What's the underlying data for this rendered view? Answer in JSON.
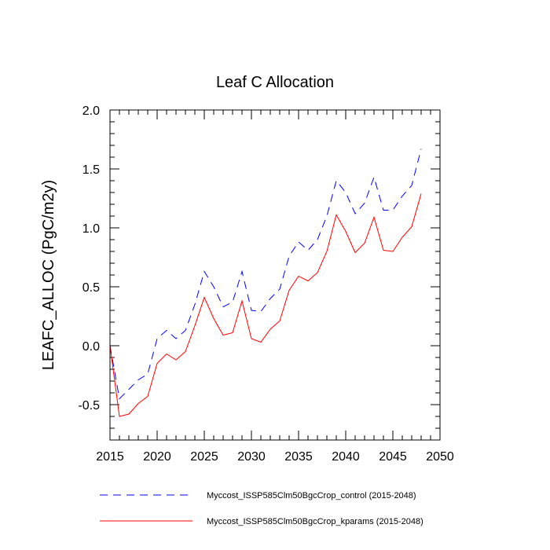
{
  "chart_data": {
    "type": "line",
    "title": "Leaf C Allocation",
    "xlabel": "",
    "ylabel": "LEAFC_ALLOC  (PgC/m2y)",
    "xlim": [
      2015,
      2050
    ],
    "ylim": [
      -0.8,
      2.0
    ],
    "x_major_ticks": [
      2015,
      2020,
      2025,
      2030,
      2035,
      2040,
      2045,
      2050
    ],
    "x_tick_labels": [
      "2015",
      "2020",
      "2025",
      "2030",
      "2035",
      "2040",
      "2045",
      "2050"
    ],
    "y_major_ticks": [
      -0.5,
      0.0,
      0.5,
      1.0,
      1.5,
      2.0
    ],
    "y_tick_labels": [
      "-0.5",
      "0.0",
      "0.5",
      "1.0",
      "1.5",
      "2.0"
    ],
    "x_minor_step": 1,
    "y_minor_step": 0.1,
    "grid": false,
    "legend_position": "bottom",
    "x": [
      2015,
      2016,
      2017,
      2018,
      2019,
      2020,
      2021,
      2022,
      2023,
      2024,
      2025,
      2026,
      2027,
      2028,
      2029,
      2030,
      2031,
      2032,
      2033,
      2034,
      2035,
      2036,
      2037,
      2038,
      2039,
      2040,
      2041,
      2042,
      2043,
      2044,
      2045,
      2046,
      2047,
      2048
    ],
    "series": [
      {
        "name": "Myccost_ISSP585Clm50BgcCrop_control (2015-2048)",
        "color": "#0000ff",
        "dash": "dashed",
        "values": [
          0.0,
          -0.45,
          -0.37,
          -0.29,
          -0.24,
          0.06,
          0.13,
          0.06,
          0.13,
          0.35,
          0.63,
          0.5,
          0.33,
          0.37,
          0.63,
          0.3,
          0.29,
          0.4,
          0.48,
          0.76,
          0.88,
          0.81,
          0.9,
          1.1,
          1.4,
          1.3,
          1.12,
          1.21,
          1.43,
          1.15,
          1.15,
          1.27,
          1.36,
          1.67
        ]
      },
      {
        "name": "Myccost_ISSP585Clm50BgcCrop_kparams (2015-2048)",
        "color": "#ff0000",
        "dash": "solid",
        "values": [
          0.0,
          -0.6,
          -0.58,
          -0.49,
          -0.43,
          -0.15,
          -0.07,
          -0.12,
          -0.05,
          0.17,
          0.41,
          0.23,
          0.09,
          0.11,
          0.38,
          0.06,
          0.03,
          0.14,
          0.21,
          0.47,
          0.59,
          0.55,
          0.62,
          0.8,
          1.11,
          0.97,
          0.79,
          0.87,
          1.09,
          0.81,
          0.8,
          0.92,
          1.01,
          1.29
        ]
      }
    ]
  }
}
